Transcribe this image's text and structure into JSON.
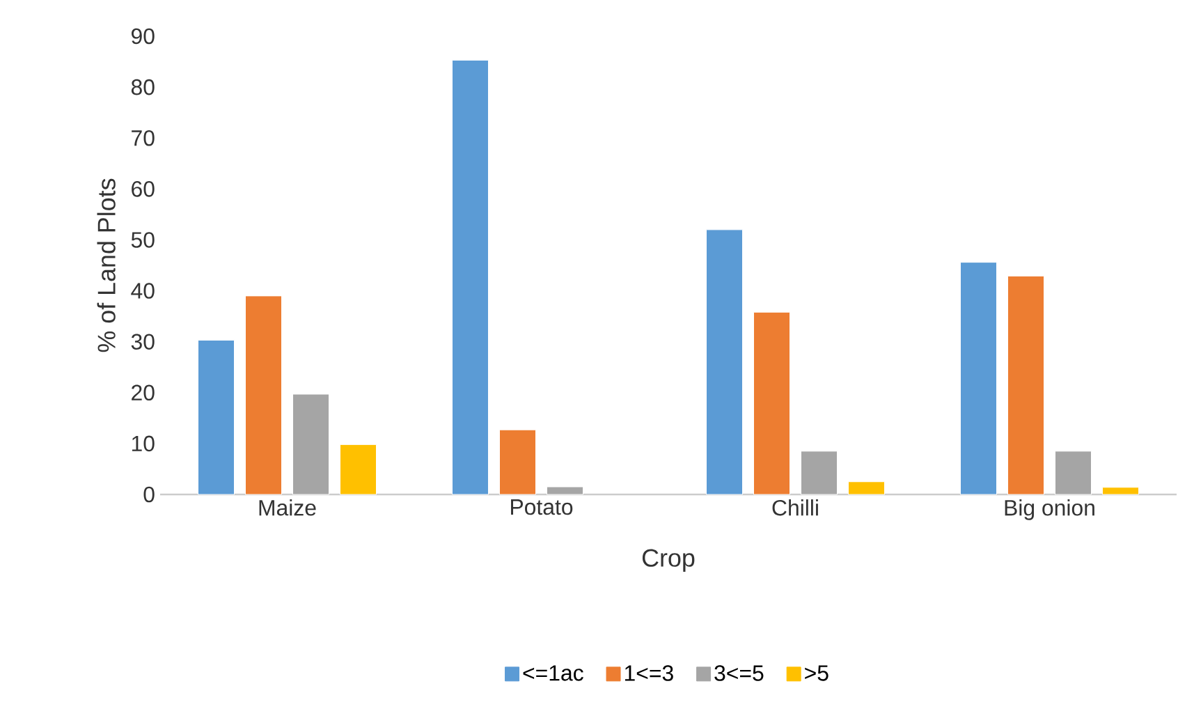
{
  "chart_data": {
    "type": "bar",
    "xlabel": "Crop",
    "ylabel": "% of Land Plots",
    "categories": [
      "Maize",
      "Potato",
      "Chilli",
      "Big onion"
    ],
    "series": [
      {
        "name": "<=1ac",
        "color": "#5b9bd5",
        "values": [
          30.3,
          85.3,
          52,
          45.6
        ]
      },
      {
        "name": "1<=3",
        "color": "#ed7d31",
        "values": [
          39,
          12.7,
          35.8,
          42.9
        ]
      },
      {
        "name": "3<=5",
        "color": "#a5a5a5",
        "values": [
          19.7,
          1.5,
          8.5,
          8.5
        ]
      },
      {
        "name": ">5",
        "color": "#ffc000",
        "values": [
          9.8,
          null,
          2.5,
          1.4
        ]
      }
    ],
    "ylim": [
      0,
      90
    ],
    "yticks": [
      0,
      10,
      20,
      30,
      40,
      50,
      60,
      70,
      80,
      90
    ],
    "grid": false,
    "legend": "bottom"
  }
}
